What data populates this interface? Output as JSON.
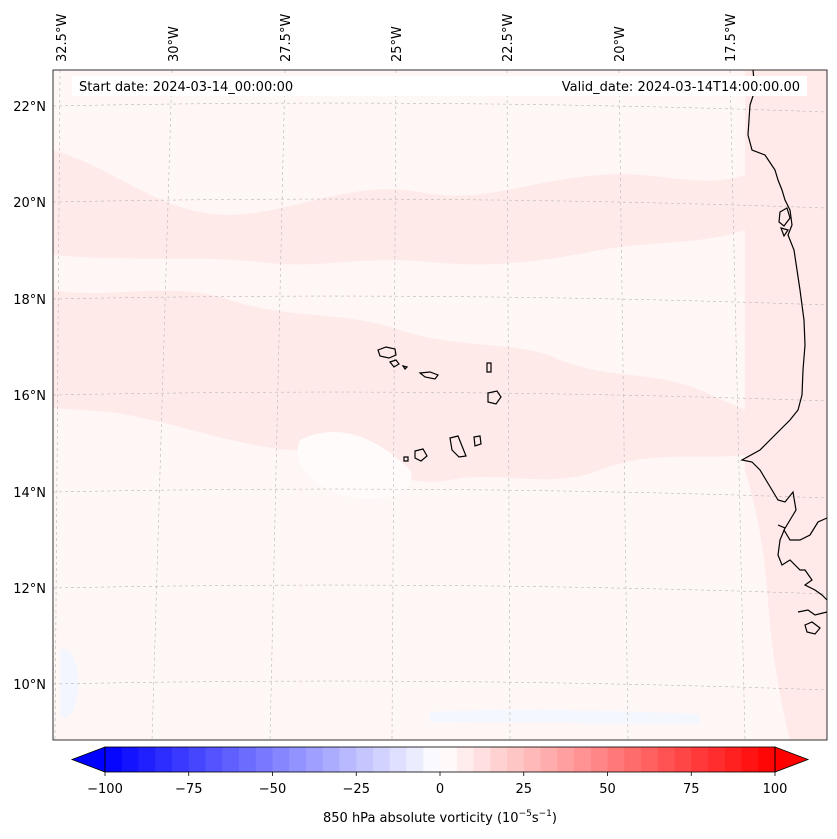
{
  "header": {
    "start_date": "Start date: 2024-03-14_00:00:00",
    "valid_date": "Valid_date: 2024-03-14T14:00:00.00"
  },
  "map": {
    "longitude_labels": [
      "32.5°W",
      "30°W",
      "27.5°W",
      "25°W",
      "22.5°W",
      "20°W",
      "17.5°W"
    ],
    "latitude_labels": [
      "22°N",
      "20°N",
      "18°N",
      "16°N",
      "14°N",
      "12°N",
      "10°N"
    ],
    "gridlines": "dashed",
    "coastline_color": "#000000",
    "field_colors": {
      "background": "#fff6f6",
      "band": "#ffe6e6",
      "negative_patch": "#f4f6ff"
    }
  },
  "colorbar": {
    "label": "850 hPa absolute vorticity (10",
    "label_exponent": "−5",
    "label_unit": "s",
    "label_unit_exponent": "−1",
    "label_close": ")",
    "ticks": [
      "−100",
      "−75",
      "−50",
      "−25",
      "0",
      "25",
      "50",
      "75",
      "100"
    ],
    "tick_values": [
      -100,
      -75,
      -50,
      -25,
      0,
      25,
      50,
      75,
      100
    ],
    "range": [
      -100,
      100
    ],
    "colormap": "bwr",
    "color_min": "#0000ff",
    "color_mid": "#ffffff",
    "color_max": "#ff0000",
    "extend": "both"
  }
}
